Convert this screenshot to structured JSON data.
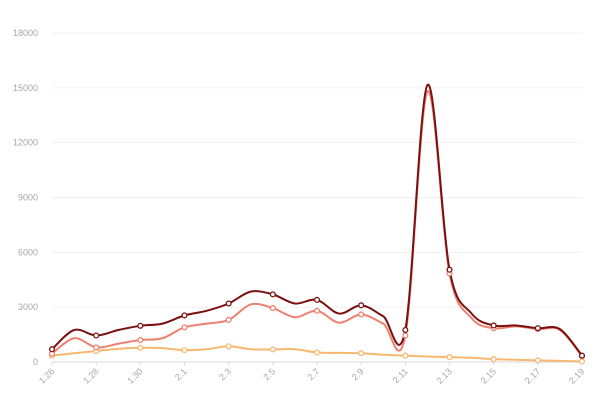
{
  "chart_data": {
    "type": "line",
    "title": "",
    "xlabel": "",
    "ylabel": "",
    "ylim": [
      0,
      18000
    ],
    "y_ticks": [
      0,
      3000,
      6000,
      9000,
      12000,
      15000,
      18000
    ],
    "grid": "horizontal",
    "legend": "none",
    "x": [
      "1.26",
      "1.27",
      "1.28",
      "1.29",
      "1.30",
      "1.31",
      "2.1",
      "2.2",
      "2.3",
      "2.4",
      "2.5",
      "2.6",
      "2.7",
      "2.8",
      "2.9",
      "2.10",
      "2.11",
      "2.12",
      "2.13",
      "2.14",
      "2.15",
      "2.16",
      "2.17",
      "2.18",
      "2.19"
    ],
    "x_tick_labels": [
      "1.26",
      "1.28",
      "1.30",
      "2.1",
      "2.3",
      "2.5",
      "2.7",
      "2.9",
      "2.11",
      "2.13",
      "2.15",
      "2.17",
      "2.19"
    ],
    "series": [
      {
        "color": "#7a1010",
        "values": [
          700,
          1750,
          1450,
          1750,
          1980,
          2100,
          2550,
          2800,
          3200,
          3850,
          3700,
          3200,
          3400,
          2650,
          3100,
          2500,
          1750,
          15150,
          5050,
          2650,
          2000,
          2000,
          1850,
          1800,
          350
        ]
      },
      {
        "color": "#ee8070",
        "values": [
          450,
          1300,
          800,
          1000,
          1200,
          1300,
          1900,
          2100,
          2300,
          3150,
          2950,
          2450,
          2800,
          2150,
          2600,
          2100,
          1450,
          14800,
          4850,
          2400,
          1850,
          1950,
          1800,
          1750,
          320
        ]
      },
      {
        "color": "#f6b870",
        "values": [
          350,
          480,
          600,
          720,
          780,
          760,
          650,
          700,
          860,
          700,
          690,
          700,
          520,
          500,
          480,
          400,
          350,
          300,
          270,
          230,
          160,
          120,
          90,
          60,
          30
        ]
      }
    ]
  }
}
